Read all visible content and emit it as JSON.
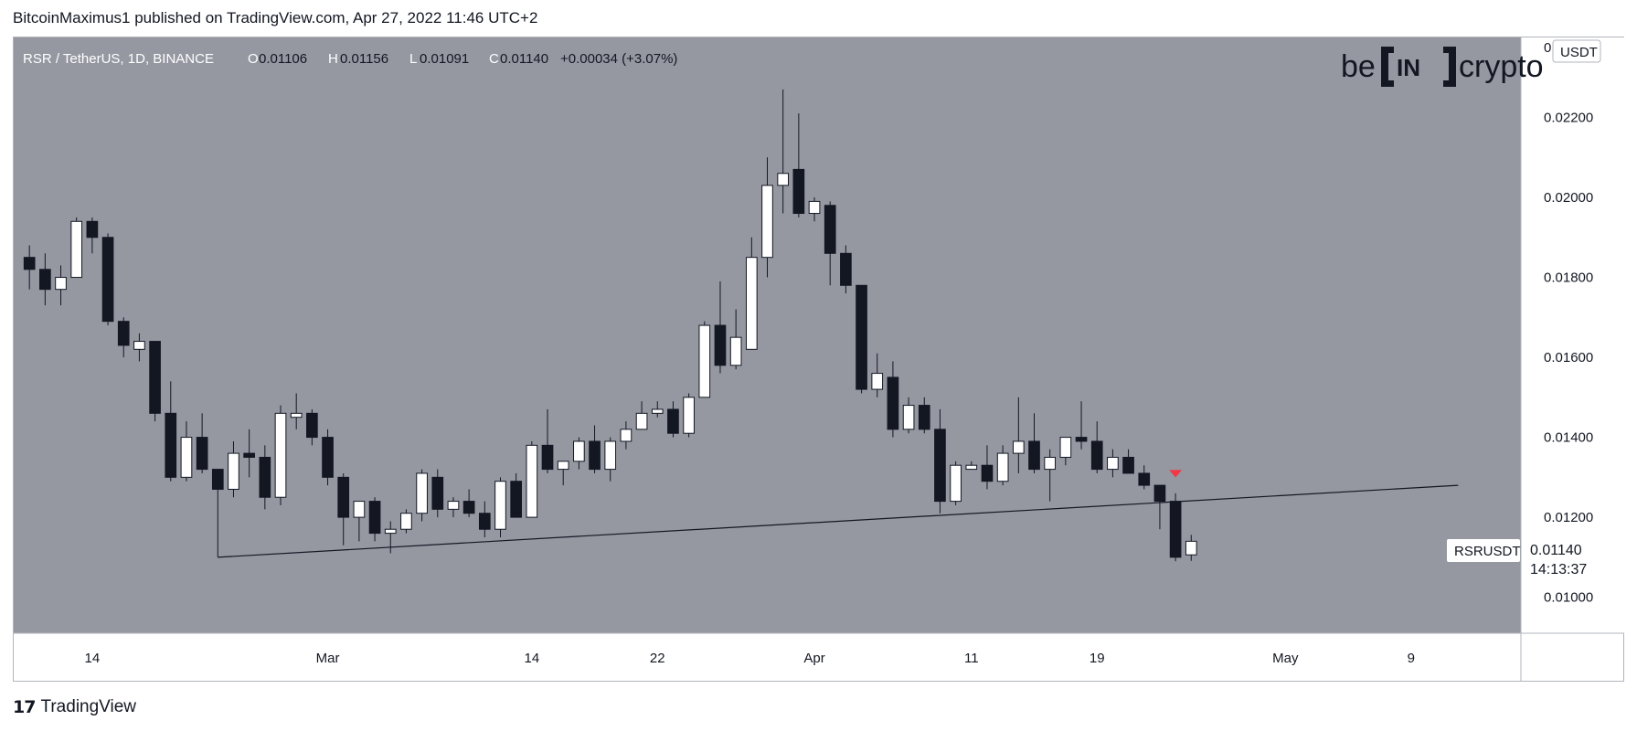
{
  "header": {
    "publish_line": "BitcoinMaximus1 published on TradingView.com, Apr 27, 2022 11:46 UTC+2"
  },
  "legend": {
    "symbol": "RSR / TetherUS, 1D, BINANCE",
    "o_label": "O",
    "o_value": "0.01106",
    "h_label": "H",
    "h_value": "0.01156",
    "l_label": "L",
    "l_value": "0.01091",
    "c_label": "C",
    "c_value": "0.01140",
    "change": "+0.00034 (+3.07%)"
  },
  "watermark": {
    "be": "be",
    "in": "IN",
    "crypto": "crypto"
  },
  "price_axis": {
    "currency": "USDT",
    "top_zero": "0",
    "ticks": [
      "0.02200",
      "0.02000",
      "0.01800",
      "0.01600",
      "0.01400",
      "0.01200",
      "0.01000"
    ]
  },
  "price_label": {
    "symbol": "RSRUSDT",
    "price": "0.01140",
    "countdown": "14:13:37"
  },
  "time_axis": {
    "ticks": [
      "14",
      "Mar",
      "14",
      "22",
      "Apr",
      "11",
      "19",
      "May",
      "9"
    ]
  },
  "footer": {
    "logo_mark": "17",
    "logo_text": "TradingView"
  },
  "colors": {
    "plot_bg": "#9598a1",
    "up_body": "#ffffff",
    "down_body": "#131722",
    "wick": "#131722",
    "trendline": "#131722",
    "marker": "#f23645"
  },
  "chart_data": {
    "type": "candlestick",
    "symbol": "RSR / TetherUS",
    "interval": "1D",
    "exchange": "BINANCE",
    "y_unit": "USDT",
    "ylim": [
      0.0091,
      0.024
    ],
    "xlim": [
      "2022-02-09",
      "2022-05-16"
    ],
    "candles": [
      {
        "date": "2022-02-10",
        "o": 0.0185,
        "h": 0.0188,
        "l": 0.0177,
        "c": 0.0182
      },
      {
        "date": "2022-02-11",
        "o": 0.0182,
        "h": 0.0186,
        "l": 0.0173,
        "c": 0.0177
      },
      {
        "date": "2022-02-12",
        "o": 0.0177,
        "h": 0.0183,
        "l": 0.0173,
        "c": 0.018
      },
      {
        "date": "2022-02-13",
        "o": 0.018,
        "h": 0.0195,
        "l": 0.018,
        "c": 0.0194
      },
      {
        "date": "2022-02-14",
        "o": 0.0194,
        "h": 0.0195,
        "l": 0.0186,
        "c": 0.019
      },
      {
        "date": "2022-02-15",
        "o": 0.019,
        "h": 0.0191,
        "l": 0.0168,
        "c": 0.0169
      },
      {
        "date": "2022-02-16",
        "o": 0.0169,
        "h": 0.017,
        "l": 0.016,
        "c": 0.0163
      },
      {
        "date": "2022-02-17",
        "o": 0.0162,
        "h": 0.0166,
        "l": 0.0159,
        "c": 0.0164
      },
      {
        "date": "2022-02-18",
        "o": 0.0164,
        "h": 0.0164,
        "l": 0.0144,
        "c": 0.0146
      },
      {
        "date": "2022-02-19",
        "o": 0.0146,
        "h": 0.0154,
        "l": 0.0129,
        "c": 0.013
      },
      {
        "date": "2022-02-20",
        "o": 0.013,
        "h": 0.0144,
        "l": 0.0129,
        "c": 0.014
      },
      {
        "date": "2022-02-21",
        "o": 0.014,
        "h": 0.0146,
        "l": 0.0131,
        "c": 0.0132
      },
      {
        "date": "2022-02-22",
        "o": 0.0132,
        "h": 0.0132,
        "l": 0.011,
        "c": 0.0127
      },
      {
        "date": "2022-02-23",
        "o": 0.0127,
        "h": 0.0139,
        "l": 0.0125,
        "c": 0.0136
      },
      {
        "date": "2022-02-24",
        "o": 0.0136,
        "h": 0.0142,
        "l": 0.013,
        "c": 0.0135
      },
      {
        "date": "2022-02-25",
        "o": 0.0135,
        "h": 0.0138,
        "l": 0.0122,
        "c": 0.0125
      },
      {
        "date": "2022-02-26",
        "o": 0.0125,
        "h": 0.0148,
        "l": 0.0123,
        "c": 0.0146
      },
      {
        "date": "2022-02-27",
        "o": 0.0145,
        "h": 0.0151,
        "l": 0.0142,
        "c": 0.0146
      },
      {
        "date": "2022-02-28",
        "o": 0.0146,
        "h": 0.0147,
        "l": 0.0138,
        "c": 0.014
      },
      {
        "date": "2022-03-01",
        "o": 0.014,
        "h": 0.0142,
        "l": 0.0128,
        "c": 0.013
      },
      {
        "date": "2022-03-02",
        "o": 0.013,
        "h": 0.0131,
        "l": 0.0113,
        "c": 0.012
      },
      {
        "date": "2022-03-03",
        "o": 0.012,
        "h": 0.0124,
        "l": 0.0114,
        "c": 0.0124
      },
      {
        "date": "2022-03-04",
        "o": 0.0124,
        "h": 0.0125,
        "l": 0.0114,
        "c": 0.0116
      },
      {
        "date": "2022-03-05",
        "o": 0.0116,
        "h": 0.0119,
        "l": 0.0111,
        "c": 0.0117
      },
      {
        "date": "2022-03-06",
        "o": 0.0117,
        "h": 0.0122,
        "l": 0.0116,
        "c": 0.0121
      },
      {
        "date": "2022-03-07",
        "o": 0.0121,
        "h": 0.0132,
        "l": 0.0119,
        "c": 0.0131
      },
      {
        "date": "2022-03-08",
        "o": 0.013,
        "h": 0.0132,
        "l": 0.012,
        "c": 0.0122
      },
      {
        "date": "2022-03-09",
        "o": 0.0122,
        "h": 0.0125,
        "l": 0.012,
        "c": 0.0124
      },
      {
        "date": "2022-03-10",
        "o": 0.0124,
        "h": 0.0127,
        "l": 0.012,
        "c": 0.0121
      },
      {
        "date": "2022-03-11",
        "o": 0.0121,
        "h": 0.0124,
        "l": 0.0115,
        "c": 0.0117
      },
      {
        "date": "2022-03-12",
        "o": 0.0117,
        "h": 0.013,
        "l": 0.0115,
        "c": 0.0129
      },
      {
        "date": "2022-03-13",
        "o": 0.0129,
        "h": 0.0131,
        "l": 0.012,
        "c": 0.012
      },
      {
        "date": "2022-03-14",
        "o": 0.012,
        "h": 0.0139,
        "l": 0.012,
        "c": 0.0138
      },
      {
        "date": "2022-03-15",
        "o": 0.0138,
        "h": 0.0147,
        "l": 0.0131,
        "c": 0.0132
      },
      {
        "date": "2022-03-16",
        "o": 0.0132,
        "h": 0.0134,
        "l": 0.0128,
        "c": 0.0134
      },
      {
        "date": "2022-03-17",
        "o": 0.0134,
        "h": 0.014,
        "l": 0.0132,
        "c": 0.0139
      },
      {
        "date": "2022-03-18",
        "o": 0.0139,
        "h": 0.0143,
        "l": 0.0131,
        "c": 0.0132
      },
      {
        "date": "2022-03-19",
        "o": 0.0132,
        "h": 0.014,
        "l": 0.0129,
        "c": 0.0139
      },
      {
        "date": "2022-03-20",
        "o": 0.0139,
        "h": 0.0144,
        "l": 0.0137,
        "c": 0.0142
      },
      {
        "date": "2022-03-21",
        "o": 0.0142,
        "h": 0.0149,
        "l": 0.0142,
        "c": 0.0146
      },
      {
        "date": "2022-03-22",
        "o": 0.0146,
        "h": 0.0149,
        "l": 0.0145,
        "c": 0.0147
      },
      {
        "date": "2022-03-23",
        "o": 0.0147,
        "h": 0.0149,
        "l": 0.014,
        "c": 0.0141
      },
      {
        "date": "2022-03-24",
        "o": 0.0141,
        "h": 0.0151,
        "l": 0.014,
        "c": 0.015
      },
      {
        "date": "2022-03-25",
        "o": 0.015,
        "h": 0.0169,
        "l": 0.015,
        "c": 0.0168
      },
      {
        "date": "2022-03-26",
        "o": 0.0168,
        "h": 0.0179,
        "l": 0.0156,
        "c": 0.0158
      },
      {
        "date": "2022-03-27",
        "o": 0.0158,
        "h": 0.0172,
        "l": 0.0157,
        "c": 0.0165
      },
      {
        "date": "2022-03-28",
        "o": 0.0162,
        "h": 0.019,
        "l": 0.0162,
        "c": 0.0185
      },
      {
        "date": "2022-03-29",
        "o": 0.0185,
        "h": 0.021,
        "l": 0.018,
        "c": 0.0203
      },
      {
        "date": "2022-03-30",
        "o": 0.0203,
        "h": 0.0227,
        "l": 0.0196,
        "c": 0.0206
      },
      {
        "date": "2022-03-31",
        "o": 0.0207,
        "h": 0.0221,
        "l": 0.0195,
        "c": 0.0196
      },
      {
        "date": "2022-04-01",
        "o": 0.0196,
        "h": 0.02,
        "l": 0.0194,
        "c": 0.0199
      },
      {
        "date": "2022-04-02",
        "o": 0.0198,
        "h": 0.0199,
        "l": 0.0178,
        "c": 0.0186
      },
      {
        "date": "2022-04-03",
        "o": 0.0186,
        "h": 0.0188,
        "l": 0.0176,
        "c": 0.0178
      },
      {
        "date": "2022-04-04",
        "o": 0.0178,
        "h": 0.0178,
        "l": 0.0151,
        "c": 0.0152
      },
      {
        "date": "2022-04-05",
        "o": 0.0152,
        "h": 0.0161,
        "l": 0.015,
        "c": 0.0156
      },
      {
        "date": "2022-04-06",
        "o": 0.0155,
        "h": 0.0159,
        "l": 0.014,
        "c": 0.0142
      },
      {
        "date": "2022-04-07",
        "o": 0.0142,
        "h": 0.015,
        "l": 0.0141,
        "c": 0.0148
      },
      {
        "date": "2022-04-08",
        "o": 0.0148,
        "h": 0.015,
        "l": 0.0141,
        "c": 0.0142
      },
      {
        "date": "2022-04-09",
        "o": 0.0142,
        "h": 0.0147,
        "l": 0.0121,
        "c": 0.0124
      },
      {
        "date": "2022-04-10",
        "o": 0.0124,
        "h": 0.0134,
        "l": 0.0123,
        "c": 0.0133
      },
      {
        "date": "2022-04-11",
        "o": 0.0132,
        "h": 0.0134,
        "l": 0.0133,
        "c": 0.0133
      },
      {
        "date": "2022-04-12",
        "o": 0.0133,
        "h": 0.0138,
        "l": 0.0127,
        "c": 0.0129
      },
      {
        "date": "2022-04-13",
        "o": 0.0129,
        "h": 0.0138,
        "l": 0.0128,
        "c": 0.0136
      },
      {
        "date": "2022-04-14",
        "o": 0.0136,
        "h": 0.015,
        "l": 0.0131,
        "c": 0.0139
      },
      {
        "date": "2022-04-15",
        "o": 0.0139,
        "h": 0.0146,
        "l": 0.0131,
        "c": 0.0132
      },
      {
        "date": "2022-04-16",
        "o": 0.0132,
        "h": 0.0137,
        "l": 0.0124,
        "c": 0.0135
      },
      {
        "date": "2022-04-17",
        "o": 0.0135,
        "h": 0.014,
        "l": 0.0133,
        "c": 0.014
      },
      {
        "date": "2022-04-18",
        "o": 0.014,
        "h": 0.0149,
        "l": 0.0137,
        "c": 0.0139
      },
      {
        "date": "2022-04-19",
        "o": 0.0139,
        "h": 0.0144,
        "l": 0.0131,
        "c": 0.0132
      },
      {
        "date": "2022-04-20",
        "o": 0.0132,
        "h": 0.0137,
        "l": 0.013,
        "c": 0.0135
      },
      {
        "date": "2022-04-21",
        "o": 0.0135,
        "h": 0.0137,
        "l": 0.0131,
        "c": 0.0131
      },
      {
        "date": "2022-04-22",
        "o": 0.0131,
        "h": 0.0133,
        "l": 0.0127,
        "c": 0.0128
      },
      {
        "date": "2022-04-23",
        "o": 0.0128,
        "h": 0.0128,
        "l": 0.0117,
        "c": 0.0124
      },
      {
        "date": "2022-04-24",
        "o": 0.0124,
        "h": 0.0126,
        "l": 0.0109,
        "c": 0.011
      },
      {
        "date": "2022-04-25",
        "o": 0.01106,
        "h": 0.01156,
        "l": 0.01091,
        "c": 0.0114
      }
    ],
    "trendline": {
      "from": {
        "date": "2022-02-22",
        "price": 0.011
      },
      "to": {
        "date": "2022-05-12",
        "price": 0.0128
      }
    },
    "marker": {
      "type": "down-arrow",
      "date": "2022-04-24",
      "price": 0.013
    }
  }
}
